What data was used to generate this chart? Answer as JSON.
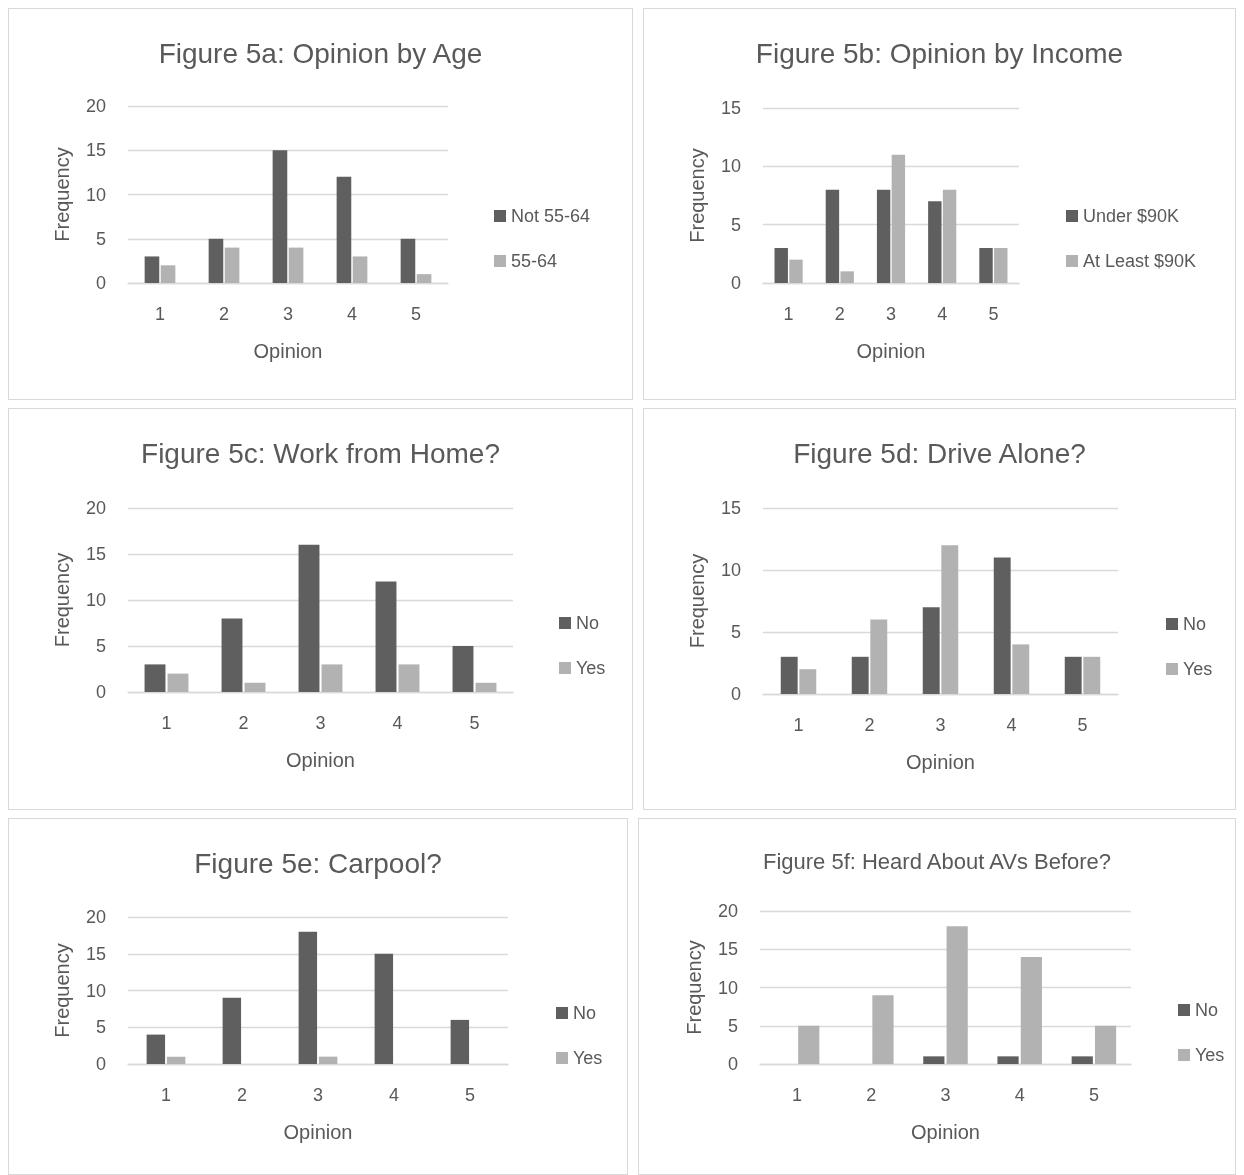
{
  "chart_data": [
    {
      "type": "bar",
      "title": "Figure 5a: Opinion by Age",
      "xlabel": "Opinion",
      "ylabel": "Frequency",
      "categories": [
        "1",
        "2",
        "3",
        "4",
        "5"
      ],
      "series": [
        {
          "name": "Not 55-64",
          "color": "#5f5f5f",
          "values": [
            3,
            5,
            15,
            12,
            5
          ]
        },
        {
          "name": "55-64",
          "color": "#b2b2b2",
          "values": [
            2,
            4,
            4,
            3,
            1
          ]
        }
      ],
      "ylim": [
        0,
        20
      ],
      "yticks": [
        0,
        5,
        10,
        15,
        20
      ],
      "grid": "y",
      "legend": "right"
    },
    {
      "type": "bar",
      "title": "Figure 5b: Opinion by Income",
      "xlabel": "Opinion",
      "ylabel": "Frequency",
      "categories": [
        "1",
        "2",
        "3",
        "4",
        "5"
      ],
      "series": [
        {
          "name": "Under $90K",
          "color": "#5f5f5f",
          "values": [
            3,
            8,
            8,
            7,
            3
          ]
        },
        {
          "name": "At Least $90K",
          "color": "#b2b2b2",
          "values": [
            2,
            1,
            11,
            8,
            3
          ]
        }
      ],
      "ylim": [
        0,
        15
      ],
      "yticks": [
        0,
        5,
        10,
        15
      ],
      "grid": "y",
      "legend": "right"
    },
    {
      "type": "bar",
      "title": "Figure 5c: Work from Home?",
      "xlabel": "Opinion",
      "ylabel": "Frequency",
      "categories": [
        "1",
        "2",
        "3",
        "4",
        "5"
      ],
      "series": [
        {
          "name": "No",
          "color": "#5f5f5f",
          "values": [
            3,
            8,
            16,
            12,
            5
          ]
        },
        {
          "name": "Yes",
          "color": "#b2b2b2",
          "values": [
            2,
            1,
            3,
            3,
            1
          ]
        }
      ],
      "ylim": [
        0,
        20
      ],
      "yticks": [
        0,
        5,
        10,
        15,
        20
      ],
      "grid": "y",
      "legend": "right"
    },
    {
      "type": "bar",
      "title": "Figure 5d: Drive Alone?",
      "xlabel": "Opinion",
      "ylabel": "Frequency",
      "categories": [
        "1",
        "2",
        "3",
        "4",
        "5"
      ],
      "series": [
        {
          "name": "No",
          "color": "#5f5f5f",
          "values": [
            3,
            3,
            7,
            11,
            3
          ]
        },
        {
          "name": "Yes",
          "color": "#b2b2b2",
          "values": [
            2,
            6,
            12,
            4,
            3
          ]
        }
      ],
      "ylim": [
        0,
        15
      ],
      "yticks": [
        0,
        5,
        10,
        15
      ],
      "grid": "y",
      "legend": "right"
    },
    {
      "type": "bar",
      "title": "Figure 5e: Carpool?",
      "xlabel": "Opinion",
      "ylabel": "Frequency",
      "categories": [
        "1",
        "2",
        "3",
        "4",
        "5"
      ],
      "series": [
        {
          "name": "No",
          "color": "#5f5f5f",
          "values": [
            4,
            9,
            18,
            15,
            6
          ]
        },
        {
          "name": "Yes",
          "color": "#b2b2b2",
          "values": [
            1,
            0,
            1,
            0,
            0
          ]
        }
      ],
      "ylim": [
        0,
        20
      ],
      "yticks": [
        0,
        5,
        10,
        15,
        20
      ],
      "grid": "y",
      "legend": "right"
    },
    {
      "type": "bar",
      "title": "Figure 5f: Heard About AVs Before?",
      "xlabel": "Opinion",
      "ylabel": "Frequency",
      "categories": [
        "1",
        "2",
        "3",
        "4",
        "5"
      ],
      "series": [
        {
          "name": "No",
          "color": "#5f5f5f",
          "values": [
            0,
            0,
            1,
            1,
            1
          ]
        },
        {
          "name": "Yes",
          "color": "#b2b2b2",
          "values": [
            5,
            9,
            18,
            14,
            5
          ]
        }
      ],
      "ylim": [
        0,
        20
      ],
      "yticks": [
        0,
        5,
        10,
        15,
        20
      ],
      "grid": "y",
      "legend": "right"
    }
  ]
}
